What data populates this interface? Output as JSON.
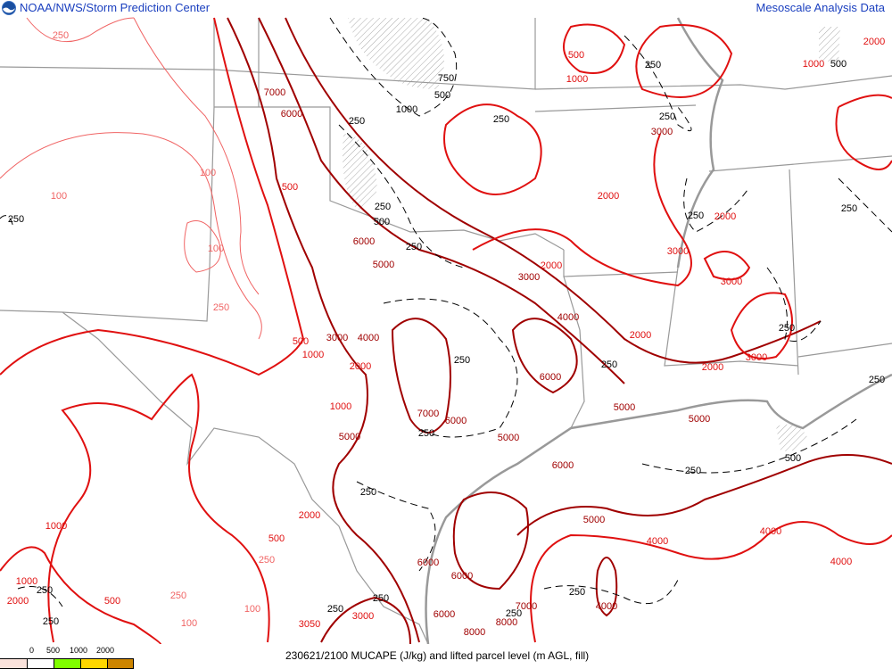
{
  "header": {
    "left_title": "NOAA/NWS/Storm Prediction Center",
    "right_title": "Mesoscale Analysis Data",
    "logo_icon": "noaa-logo-icon"
  },
  "legend": {
    "ticks": [
      "0",
      "500",
      "1000",
      "2000"
    ],
    "swatches": [
      "#fbe3dc",
      "#ffffff",
      "#80ff00",
      "#ffd700",
      "#cd8500"
    ]
  },
  "caption": "230621/2100 MUCAPE (J/kg) and lifted parcel level (m AGL, fill)",
  "colors": {
    "cape_low": "#f06464",
    "cape_mid": "#e01010",
    "cape_high": "#a00000",
    "lpl": "#000000",
    "borders": "#999999",
    "header_text": "#1a3fbf"
  },
  "contour_labels": [
    {
      "text": "250",
      "kind": "low"
    },
    {
      "text": "7000",
      "kind": "high"
    },
    {
      "text": "6000",
      "kind": "high"
    },
    {
      "text": "500",
      "kind": "mid"
    },
    {
      "text": "100",
      "kind": "low"
    },
    {
      "text": "100",
      "kind": "low"
    },
    {
      "text": "100",
      "kind": "low"
    },
    {
      "text": "250",
      "kind": "low"
    },
    {
      "text": "6000",
      "kind": "high"
    },
    {
      "text": "5000",
      "kind": "high"
    },
    {
      "text": "3000",
      "kind": "high"
    },
    {
      "text": "2000",
      "kind": "mid"
    },
    {
      "text": "4000",
      "kind": "high"
    },
    {
      "text": "500",
      "kind": "mid"
    },
    {
      "text": "1000",
      "kind": "mid"
    },
    {
      "text": "2000",
      "kind": "mid"
    },
    {
      "text": "2000",
      "kind": "mid"
    },
    {
      "text": "3000",
      "kind": "mid"
    },
    {
      "text": "3000",
      "kind": "mid"
    },
    {
      "text": "2000",
      "kind": "mid"
    },
    {
      "text": "2000",
      "kind": "mid"
    },
    {
      "text": "3000",
      "kind": "mid"
    },
    {
      "text": "500",
      "kind": "mid"
    },
    {
      "text": "3000",
      "kind": "high"
    },
    {
      "text": "4000",
      "kind": "high"
    },
    {
      "text": "1000",
      "kind": "mid"
    },
    {
      "text": "2000",
      "kind": "mid"
    },
    {
      "text": "1000",
      "kind": "mid"
    },
    {
      "text": "7000",
      "kind": "high"
    },
    {
      "text": "6000",
      "kind": "high"
    },
    {
      "text": "5000",
      "kind": "high"
    },
    {
      "text": "5000",
      "kind": "high"
    },
    {
      "text": "6000",
      "kind": "high"
    },
    {
      "text": "5000",
      "kind": "high"
    },
    {
      "text": "5000",
      "kind": "high"
    },
    {
      "text": "6000",
      "kind": "high"
    },
    {
      "text": "2000",
      "kind": "mid"
    },
    {
      "text": "500",
      "kind": "mid"
    },
    {
      "text": "250",
      "kind": "low"
    },
    {
      "text": "1000",
      "kind": "mid"
    },
    {
      "text": "1000",
      "kind": "mid"
    },
    {
      "text": "2000",
      "kind": "mid"
    },
    {
      "text": "500",
      "kind": "mid"
    },
    {
      "text": "250",
      "kind": "low"
    },
    {
      "text": "100",
      "kind": "low"
    },
    {
      "text": "100",
      "kind": "low"
    },
    {
      "text": "5000",
      "kind": "high"
    },
    {
      "text": "4000",
      "kind": "mid"
    },
    {
      "text": "4000",
      "kind": "mid"
    },
    {
      "text": "4000",
      "kind": "mid"
    },
    {
      "text": "6000",
      "kind": "high"
    },
    {
      "text": "6000",
      "kind": "high"
    },
    {
      "text": "3000",
      "kind": "mid"
    },
    {
      "text": "6000",
      "kind": "high"
    },
    {
      "text": "8000",
      "kind": "high"
    },
    {
      "text": "8000",
      "kind": "high"
    },
    {
      "text": "7000",
      "kind": "high"
    },
    {
      "text": "4000",
      "kind": "high"
    },
    {
      "text": "1000",
      "kind": "mid"
    },
    {
      "text": "2000",
      "kind": "mid"
    },
    {
      "text": "3000",
      "kind": "high"
    },
    {
      "text": "3050",
      "kind": "mid"
    },
    {
      "text": "250",
      "kind": "lpl"
    },
    {
      "text": "750",
      "kind": "lpl"
    },
    {
      "text": "1000",
      "kind": "lpl"
    },
    {
      "text": "500",
      "kind": "lpl"
    },
    {
      "text": "250",
      "kind": "lpl"
    },
    {
      "text": "250",
      "kind": "lpl"
    },
    {
      "text": "250",
      "kind": "lpl"
    },
    {
      "text": "500",
      "kind": "lpl"
    },
    {
      "text": "250",
      "kind": "lpl"
    },
    {
      "text": "250",
      "kind": "lpl"
    },
    {
      "text": "250",
      "kind": "lpl"
    },
    {
      "text": "250",
      "kind": "lpl"
    },
    {
      "text": "250",
      "kind": "lpl"
    },
    {
      "text": "250",
      "kind": "lpl"
    },
    {
      "text": "250",
      "kind": "lpl"
    },
    {
      "text": "250",
      "kind": "lpl"
    },
    {
      "text": "250",
      "kind": "lpl"
    },
    {
      "text": "250",
      "kind": "lpl"
    },
    {
      "text": "250",
      "kind": "lpl"
    },
    {
      "text": "250",
      "kind": "lpl"
    },
    {
      "text": "250",
      "kind": "lpl"
    },
    {
      "text": "250",
      "kind": "lpl"
    },
    {
      "text": "500",
      "kind": "lpl"
    },
    {
      "text": "250",
      "kind": "lpl"
    },
    {
      "text": "250",
      "kind": "lpl"
    },
    {
      "text": "250",
      "kind": "lpl"
    },
    {
      "text": "500",
      "kind": "lpl"
    },
    {
      "text": "250",
      "kind": "lpl"
    }
  ]
}
